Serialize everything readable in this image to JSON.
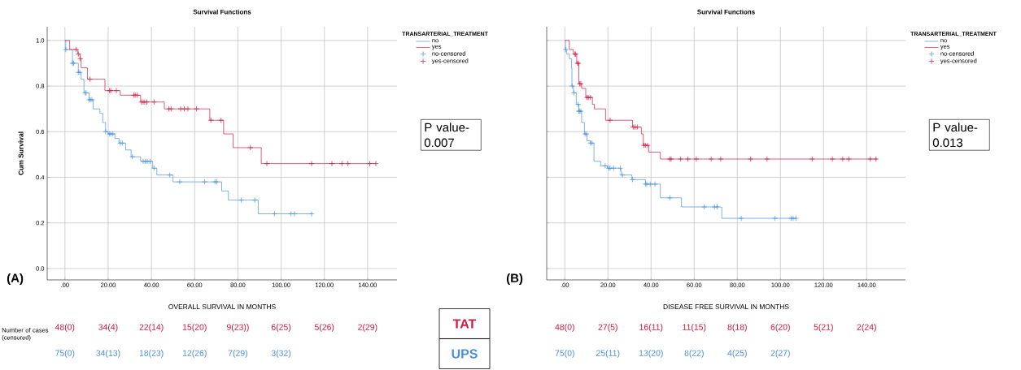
{
  "chart_data": [
    {
      "type": "step",
      "title": "Survival Functions",
      "xlabel": "OVERALL SURVIVAL IN MONTHS",
      "ylabel": "Cum Survival",
      "legend_title": "TRANSARTERIAL_TREATMENT",
      "legend": "right",
      "grid": true,
      "xlim": [
        -8.2,
        153.6
      ],
      "ylim": [
        -0.05,
        1.06
      ],
      "xticks": [
        {
          "value": 0,
          "label": ".00"
        },
        {
          "value": 20,
          "label": "20.00"
        },
        {
          "value": 40,
          "label": "40.00"
        },
        {
          "value": 60,
          "label": "60.00"
        },
        {
          "value": 80,
          "label": "80.00"
        },
        {
          "value": 100,
          "label": "100.00"
        },
        {
          "value": 120,
          "label": "120.00"
        },
        {
          "value": 140,
          "label": "140.00"
        }
      ],
      "yticks": [
        {
          "value": 0,
          "label": "0.0"
        },
        {
          "value": 0.2,
          "label": "0.2"
        },
        {
          "value": 0.4,
          "label": "0.4"
        },
        {
          "value": 0.6,
          "label": "0.6"
        },
        {
          "value": 0.8,
          "label": "0.8"
        },
        {
          "value": 1,
          "label": "1.0"
        }
      ],
      "series": [
        {
          "name": "no",
          "color": "#4a90d9",
          "x": [
            0,
            0.4,
            3.5,
            6.2,
            7.5,
            8.8,
            11.2,
            13.1,
            16.2,
            17.5,
            18.8,
            20,
            23.1,
            25,
            28.1,
            30.6,
            35,
            40.6,
            42.5,
            50,
            72.5,
            75.6,
            89.4,
            114.4
          ],
          "values": [
            1,
            0.96,
            0.9,
            0.86,
            0.83,
            0.77,
            0.74,
            0.7,
            0.68,
            0.64,
            0.6,
            0.59,
            0.57,
            0.55,
            0.52,
            0.49,
            0.47,
            0.44,
            0.41,
            0.38,
            0.34,
            0.3,
            0.24,
            0.24
          ]
        },
        {
          "name": "yes",
          "color": "#d1193e",
          "x": [
            0,
            2.2,
            6,
            7,
            7.5,
            10.4,
            18.5,
            25.6,
            35,
            46,
            67,
            73.4,
            77.8,
            90.8,
            143.8
          ],
          "values": [
            1,
            0.96,
            0.94,
            0.92,
            0.88,
            0.83,
            0.78,
            0.76,
            0.73,
            0.7,
            0.65,
            0.59,
            0.53,
            0.46,
            0.46
          ]
        },
        {
          "name": "no-censored",
          "type": "scatter",
          "marker": "cross",
          "color": "#4a90d9",
          "x": [
            0.4,
            3.5,
            4,
            6.2,
            6.9,
            9.4,
            9.8,
            11.2,
            11.8,
            12.5,
            18.8,
            20.6,
            21.2,
            22.2,
            25.6,
            26.5,
            31.2,
            36.2,
            37.2,
            38.1,
            39.4,
            41.2,
            48.5,
            53.1,
            64.6,
            69.4,
            70.2,
            81.6,
            87.8,
            96.9,
            104.6,
            106.2,
            114.1
          ],
          "values": [
            0.96,
            0.9,
            0.9,
            0.86,
            0.86,
            0.77,
            0.77,
            0.74,
            0.74,
            0.74,
            0.6,
            0.59,
            0.59,
            0.59,
            0.55,
            0.55,
            0.49,
            0.47,
            0.47,
            0.47,
            0.47,
            0.44,
            0.41,
            0.38,
            0.38,
            0.38,
            0.38,
            0.3,
            0.3,
            0.24,
            0.24,
            0.24,
            0.24
          ]
        },
        {
          "name": "yes-censored",
          "type": "scatter",
          "marker": "cross",
          "color": "#d1193e",
          "x": [
            5.2,
            6.2,
            7.1,
            11.6,
            20.6,
            21.2,
            23.8,
            31.9,
            32.5,
            33.5,
            35.4,
            36.2,
            36.9,
            37.9,
            41.2,
            48.1,
            49.1,
            53.5,
            55.2,
            56.9,
            60.9,
            67.5,
            72.2,
            85.8,
            93.4,
            114.1,
            123.5,
            128.1,
            130.9,
            141,
            143.8
          ],
          "values": [
            0.96,
            0.94,
            0.92,
            0.83,
            0.78,
            0.78,
            0.78,
            0.76,
            0.76,
            0.76,
            0.73,
            0.73,
            0.73,
            0.73,
            0.73,
            0.7,
            0.7,
            0.7,
            0.7,
            0.7,
            0.7,
            0.65,
            0.65,
            0.53,
            0.46,
            0.46,
            0.46,
            0.46,
            0.46,
            0.46,
            0.46
          ]
        }
      ],
      "annotations": [
        "(A)",
        "P value-0.007",
        "Number of cases (censored)",
        "TAT",
        "UPS",
        "48(0)",
        "34(4)",
        "22(14)",
        "15(20)",
        "9(23))",
        "6(25)",
        "5(26)",
        "2(29)",
        "75(0)",
        "34(13)",
        "18(23)",
        "12(26)",
        "7(29)",
        "3(32)"
      ]
    },
    {
      "type": "step",
      "title": "Survival Functions",
      "xlabel": "DISEASE FREE SURVIVAL IN MONTHS",
      "legend_title": "TRANSARTERIAL_TREATMENT",
      "legend": "right",
      "grid": true,
      "tick_labels": "x",
      "xlim": [
        -8.4,
        158
      ],
      "ylim": [
        -0.05,
        1.06
      ],
      "xticks": [
        {
          "value": 0,
          "label": ".00"
        },
        {
          "value": 20,
          "label": "20.00"
        },
        {
          "value": 40,
          "label": "40.00"
        },
        {
          "value": 60,
          "label": "60.00"
        },
        {
          "value": 80,
          "label": "80.00"
        },
        {
          "value": 100,
          "label": "100.00"
        },
        {
          "value": 120,
          "label": "120.00"
        },
        {
          "value": 140,
          "label": "140.00"
        }
      ],
      "yticks": [
        {
          "value": 0,
          "label": null
        },
        {
          "value": 0.2,
          "label": null
        },
        {
          "value": 0.4,
          "label": null
        },
        {
          "value": 0.6,
          "label": null
        },
        {
          "value": 0.8,
          "label": null
        },
        {
          "value": 1,
          "label": null
        }
      ],
      "series": [
        {
          "name": "no",
          "color": "#4a90d9",
          "x": [
            0,
            0.3,
            0.9,
            2.1,
            3.1,
            3.3,
            4,
            5.3,
            6.5,
            7.8,
            9.1,
            10.3,
            11.8,
            13.5,
            16.6,
            19.7,
            26,
            31.1,
            37.4,
            44.3,
            54.1,
            72.8,
            107.2
          ],
          "values": [
            1,
            0.96,
            0.94,
            0.92,
            0.88,
            0.8,
            0.77,
            0.72,
            0.69,
            0.64,
            0.59,
            0.56,
            0.55,
            0.47,
            0.45,
            0.44,
            0.41,
            0.39,
            0.37,
            0.31,
            0.27,
            0.22,
            0.22
          ]
        },
        {
          "name": "yes",
          "color": "#d1193e",
          "x": [
            0,
            2.1,
            4,
            5.5,
            6.5,
            7.8,
            9.7,
            12.8,
            13.7,
            18.9,
            31.4,
            35.5,
            36.4,
            38.9,
            44.3,
            144.9
          ],
          "values": [
            1,
            0.96,
            0.94,
            0.9,
            0.81,
            0.79,
            0.75,
            0.72,
            0.7,
            0.65,
            0.62,
            0.59,
            0.54,
            0.51,
            0.48,
            0.48
          ]
        },
        {
          "name": "no-censored",
          "type": "scatter",
          "marker": "cross",
          "color": "#4a90d9",
          "x": [
            0.4,
            3.4,
            4.3,
            6.2,
            6.5,
            6.8,
            7.4,
            9.4,
            10.1,
            11.9,
            12.6,
            18.7,
            20.4,
            21,
            22.6,
            25.8,
            26.7,
            31.4,
            37.4,
            38,
            39.6,
            41.8,
            48.7,
            64.7,
            69.4,
            70.6,
            81.8,
            97.5,
            105,
            105.9,
            107.2
          ],
          "values": [
            0.96,
            0.8,
            0.77,
            0.72,
            0.69,
            0.69,
            0.69,
            0.59,
            0.59,
            0.55,
            0.55,
            0.45,
            0.44,
            0.44,
            0.44,
            0.44,
            0.41,
            0.39,
            0.37,
            0.37,
            0.37,
            0.37,
            0.31,
            0.27,
            0.27,
            0.27,
            0.22,
            0.22,
            0.22,
            0.22,
            0.22
          ]
        },
        {
          "name": "yes-censored",
          "type": "scatter",
          "marker": "cross",
          "color": "#d1193e",
          "x": [
            4.7,
            5,
            5.9,
            6.3,
            6.9,
            7.4,
            10.3,
            10.9,
            11.9,
            21,
            31.7,
            32.6,
            33.6,
            36.7,
            37.4,
            38.4,
            48.7,
            49.3,
            53.7,
            57.1,
            61,
            67.9,
            72.3,
            86.2,
            93.8,
            114.7,
            124.1,
            128.9,
            131.7,
            141.7,
            144.3
          ],
          "values": [
            0.94,
            0.94,
            0.9,
            0.9,
            0.81,
            0.81,
            0.75,
            0.75,
            0.75,
            0.65,
            0.62,
            0.62,
            0.62,
            0.54,
            0.54,
            0.54,
            0.48,
            0.48,
            0.48,
            0.48,
            0.48,
            0.48,
            0.48,
            0.48,
            0.48,
            0.48,
            0.48,
            0.48,
            0.48,
            0.48,
            0.48
          ]
        }
      ],
      "annotations": [
        "(B)",
        "P value-0.013",
        "48(0)",
        "27(5)",
        "16(11)",
        "11(15)",
        "8(18)",
        "6(20)",
        "5(21)",
        "2(24)",
        "75(0)",
        "25(11)",
        "13(20)",
        "8(22)",
        "4(25)",
        "2(27)"
      ]
    }
  ]
}
